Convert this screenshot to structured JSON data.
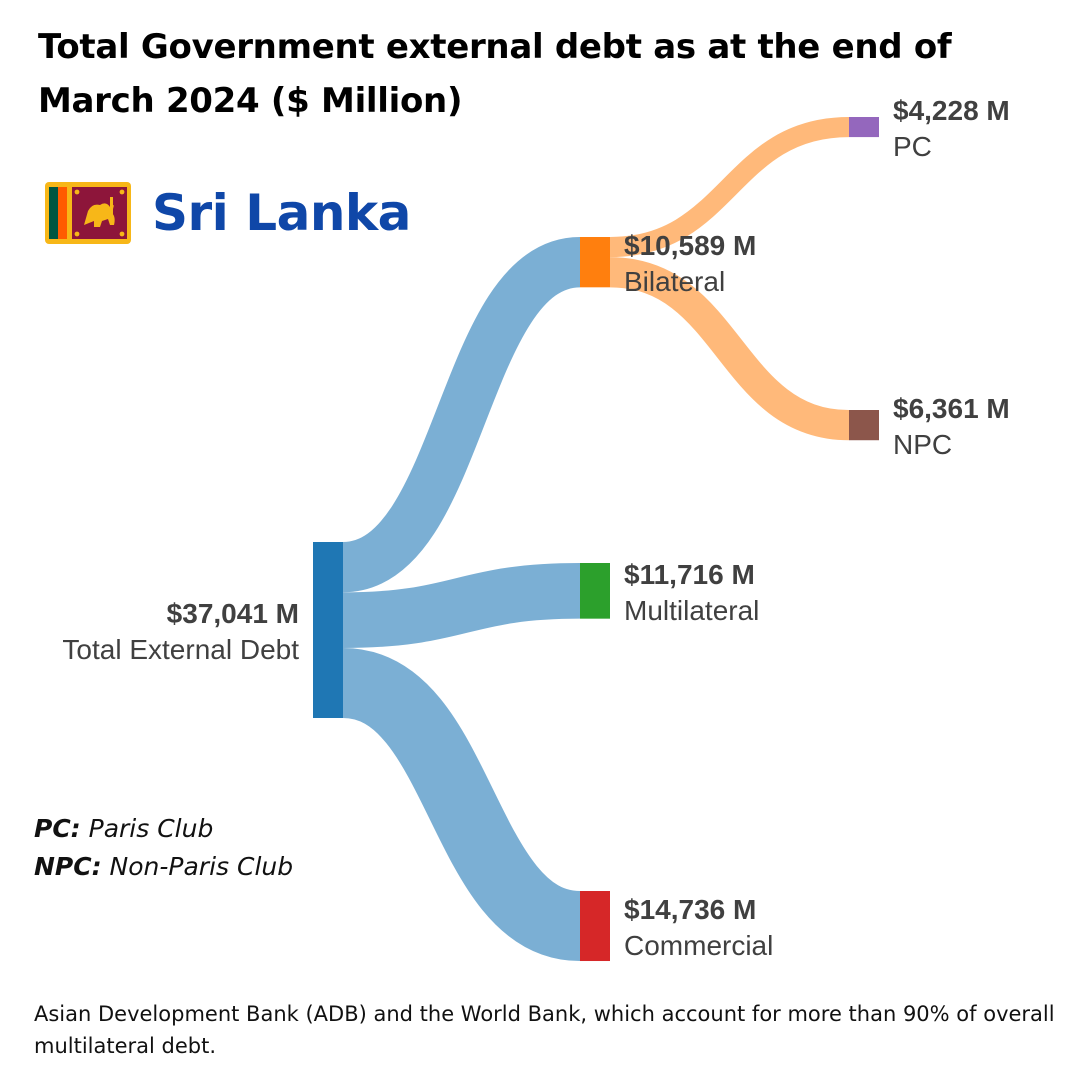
{
  "title": "Total Government external debt as at the end of March 2024 ($ Million)",
  "country": {
    "name": "Sri Lanka",
    "flag_icon": "sri-lanka-flag-icon"
  },
  "abbreviations": [
    {
      "abbr": "PC:",
      "meaning": "Paris Club"
    },
    {
      "abbr": "NPC:",
      "meaning": "Non-Paris Club"
    }
  ],
  "footnote": "Asian Development Bank (ADB) and the World Bank, which account for more than 90% of overall multilateral debt.",
  "chart_data": {
    "type": "sankey",
    "title": "Total Government external debt as at the end of March 2024 ($ Million)",
    "units": "$ Million",
    "nodes": [
      {
        "id": "total",
        "value_label": "$37,041 M",
        "label": "Total External Debt",
        "value": 37041,
        "color": "#1f77b4"
      },
      {
        "id": "bilateral",
        "value_label": "$10,589 M",
        "label": "Bilateral",
        "value": 10589,
        "color": "#ff7f0e"
      },
      {
        "id": "multilateral",
        "value_label": "$11,716 M",
        "label": "Multilateral",
        "value": 11716,
        "color": "#2ca02c"
      },
      {
        "id": "commercial",
        "value_label": "$14,736 M",
        "label": "Commercial",
        "value": 14736,
        "color": "#d62728"
      },
      {
        "id": "pc",
        "value_label": "$4,228 M",
        "label": "PC",
        "value": 4228,
        "color": "#9467bd"
      },
      {
        "id": "npc",
        "value_label": "$6,361 M",
        "label": "NPC",
        "value": 6361,
        "color": "#8c564b"
      }
    ],
    "links": [
      {
        "source": "total",
        "target": "bilateral",
        "value": 10589,
        "color": "#7bafd4"
      },
      {
        "source": "total",
        "target": "multilateral",
        "value": 11716,
        "color": "#7bafd4"
      },
      {
        "source": "total",
        "target": "commercial",
        "value": 14736,
        "color": "#7bafd4"
      },
      {
        "source": "bilateral",
        "target": "pc",
        "value": 4228,
        "color": "#ffb97a"
      },
      {
        "source": "bilateral",
        "target": "npc",
        "value": 6361,
        "color": "#ffb97a"
      }
    ]
  }
}
